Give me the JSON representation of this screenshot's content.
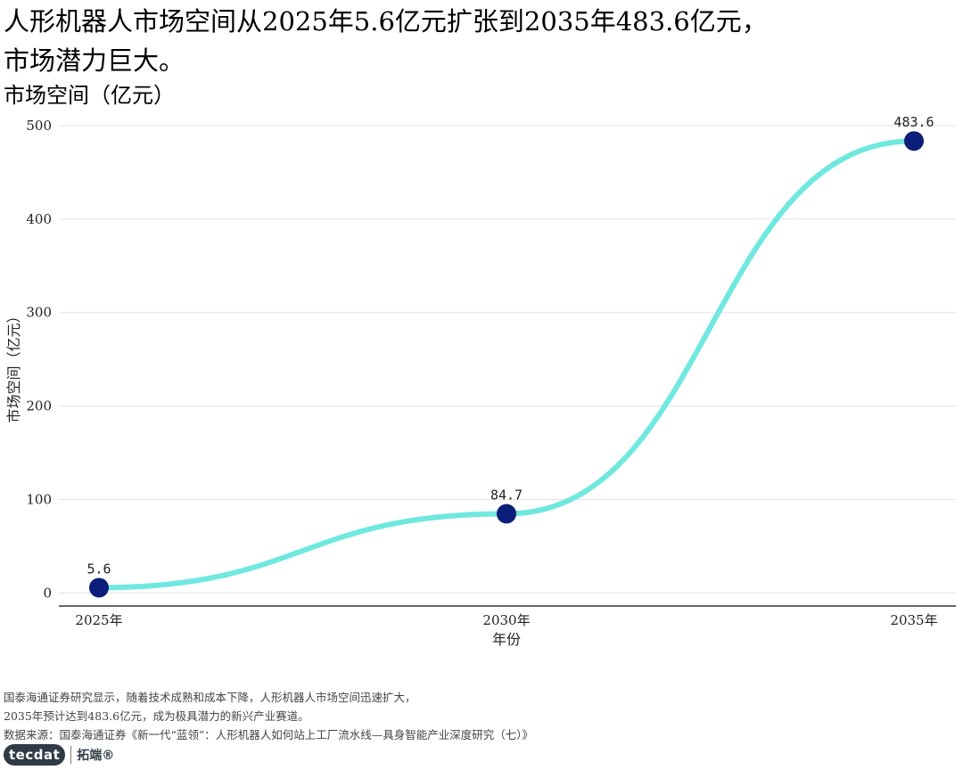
{
  "title": {
    "line1": "人形机器人市场空间从2025年5.6亿元扩张到2035年483.6亿元，",
    "line2": "市场潜力巨大。"
  },
  "subtitle": "市场空间（亿元）",
  "chart_data": {
    "type": "line",
    "x": [
      "2025年",
      "2030年",
      "2035年"
    ],
    "values": [
      5.6,
      84.7,
      483.6
    ],
    "data_labels": [
      "5.6",
      "84.7",
      "483.6"
    ],
    "xlabel": "年份",
    "ylabel": "市场空间（亿元）",
    "ylim": [
      -14,
      500
    ],
    "yticks": [
      0,
      100,
      200,
      300,
      400,
      500
    ],
    "grid": true,
    "legend": "none",
    "line_color": "#6fe8e0",
    "point_color": "#0b1f7a",
    "smooth": true
  },
  "footer": {
    "line1": "国泰海通证券研究显示，随着技术成熟和成本下降，人形机器人市场空间迅速扩大，",
    "line2": "2035年预计达到483.6亿元，成为极具潜力的新兴产业赛道。",
    "line3": "数据来源：国泰海通证券《新一代“蓝领”：人形机器人如何站上工厂流水线—具身智能产业深度研究（七）》"
  },
  "brand": {
    "logo_text": "tecdat",
    "name": "拓端®"
  }
}
